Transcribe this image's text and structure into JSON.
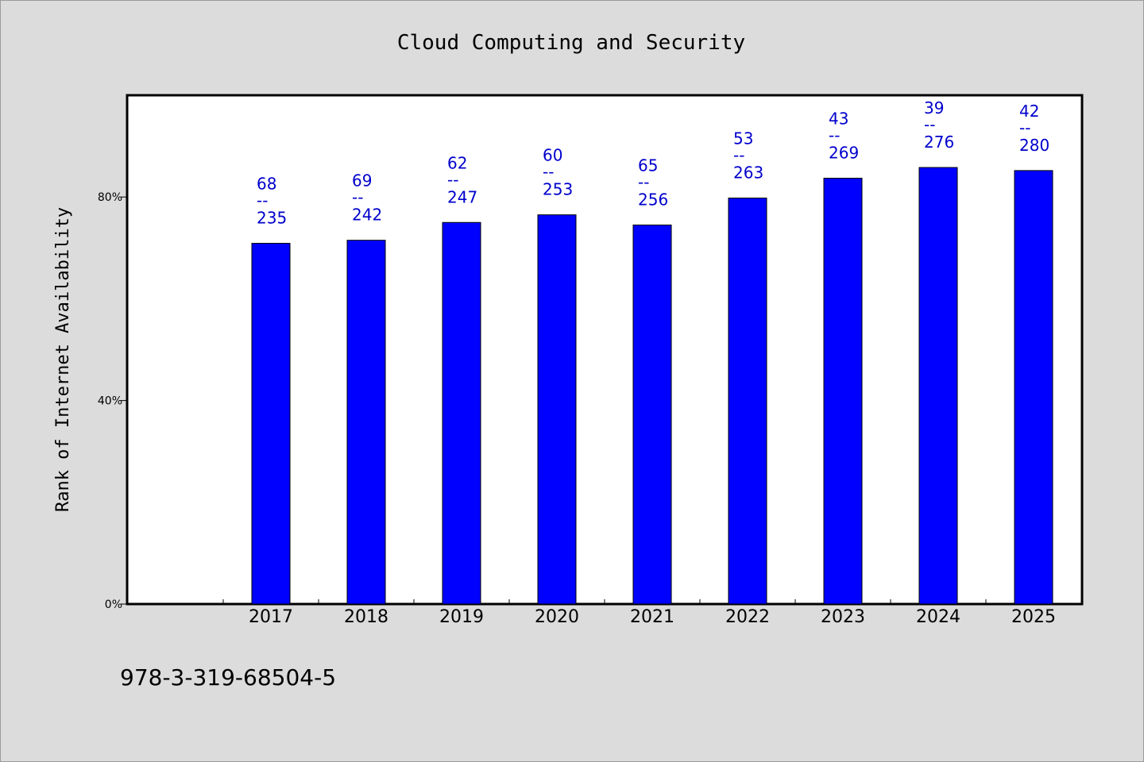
{
  "chart_data": {
    "type": "bar",
    "title": "Cloud Computing and Security",
    "xlabel": "",
    "ylabel": "Rank of Internet Availability",
    "categories": [
      "2017",
      "2018",
      "2019",
      "2020",
      "2021",
      "2022",
      "2023",
      "2024",
      "2025"
    ],
    "values": [
      70.9,
      71.5,
      75.0,
      76.5,
      74.5,
      79.8,
      83.7,
      85.8,
      85.2
    ],
    "data_labels": [
      {
        "top": "68",
        "sep": "--",
        "bottom": "235"
      },
      {
        "top": "69",
        "sep": "--",
        "bottom": "242"
      },
      {
        "top": "62",
        "sep": "--",
        "bottom": "247"
      },
      {
        "top": "60",
        "sep": "--",
        "bottom": "253"
      },
      {
        "top": "65",
        "sep": "--",
        "bottom": "256"
      },
      {
        "top": "53",
        "sep": "--",
        "bottom": "263"
      },
      {
        "top": "43",
        "sep": "--",
        "bottom": "269"
      },
      {
        "top": "39",
        "sep": "--",
        "bottom": "276"
      },
      {
        "top": "42",
        "sep": "--",
        "bottom": "280"
      }
    ],
    "ylim": [
      0,
      100
    ],
    "yticks": [
      0,
      40,
      80
    ],
    "ytick_labels": [
      "0%",
      "40%",
      "80%"
    ],
    "grid": false,
    "bar_color": "#0000ff",
    "label_color": "#0000cc",
    "plot_background": "#ffffff",
    "figure_background": "#dcdcdc"
  },
  "footer": {
    "isbn": "978-3-319-68504-5"
  }
}
